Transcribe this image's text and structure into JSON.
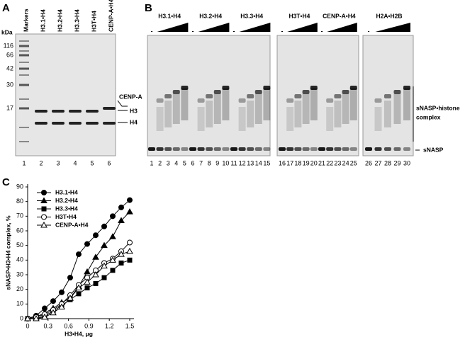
{
  "panel_a": {
    "letter": "A",
    "unit": "kDa",
    "lane_headers": [
      "Markers",
      "H3.1•H4",
      "H3.2•H4",
      "H3.3•H4",
      "H3T•H4",
      "CENP-A•H4"
    ],
    "marker_sizes": [
      116,
      66,
      42,
      30,
      17
    ],
    "lane_numbers": [
      1,
      2,
      3,
      4,
      5,
      6
    ],
    "band_labels": [
      "CENP-A",
      "H3",
      "H4"
    ]
  },
  "panel_b": {
    "letter": "B",
    "groups": [
      {
        "label": "H3.1•H4",
        "minus": "-"
      },
      {
        "label": "H3.2•H4",
        "minus": "-"
      },
      {
        "label": "H3.3•H4",
        "minus": "-"
      },
      {
        "label": "H3T•H4",
        "minus": "-"
      },
      {
        "label": "CENP-A•H4",
        "minus": "-"
      },
      {
        "label": "H2A•H2B",
        "minus": "-"
      }
    ],
    "lane_numbers": [
      1,
      2,
      3,
      4,
      5,
      6,
      7,
      8,
      9,
      10,
      11,
      12,
      13,
      14,
      15,
      16,
      17,
      18,
      19,
      20,
      21,
      22,
      23,
      24,
      25,
      26,
      27,
      28,
      29,
      30
    ],
    "complex_label": [
      "sNASP•histone",
      "complex"
    ],
    "free_label": "sNASP"
  },
  "chart_data": {
    "type": "line",
    "letter": "C",
    "x_label": "H3•H4, μg",
    "y_label": "sNASP•H3•H4 complex, %",
    "x": [
      0,
      0.125,
      0.25,
      0.375,
      0.5,
      0.625,
      0.75,
      0.875,
      1.0,
      1.125,
      1.25,
      1.375,
      1.5
    ],
    "xlim": [
      0,
      1.5
    ],
    "xticks": [
      0,
      0.3,
      0.6,
      0.9,
      1.2,
      1.5
    ],
    "ylim": [
      0,
      90
    ],
    "yticks": [
      0,
      10,
      20,
      30,
      40,
      50,
      60,
      70,
      80,
      90
    ],
    "legend": "upper left",
    "series": [
      {
        "name": "H3.1•H4",
        "color": "#000000",
        "marker": "circle",
        "filled": true,
        "values": [
          0,
          2,
          7,
          12,
          18,
          28,
          44,
          51,
          57,
          63,
          70,
          76,
          81
        ]
      },
      {
        "name": "H3.2•H4",
        "color": "#000000",
        "marker": "triangle",
        "filled": true,
        "values": [
          0,
          1,
          4,
          7,
          11,
          14,
          22,
          32,
          42,
          50,
          56,
          67,
          73
        ]
      },
      {
        "name": "H3.3•H4",
        "color": "#000000",
        "marker": "square",
        "filled": true,
        "values": [
          0,
          0,
          2,
          5,
          9,
          13,
          17,
          21,
          24,
          28,
          33,
          38,
          40
        ]
      },
      {
        "name": "H3T•H4",
        "color": "#000000",
        "marker": "circle",
        "filled": false,
        "values": [
          0,
          1,
          3,
          6,
          10,
          16,
          23,
          28,
          33,
          38,
          41,
          46,
          52
        ]
      },
      {
        "name": "CENP-A•H4",
        "color": "#000000",
        "marker": "triangle",
        "filled": false,
        "values": [
          0,
          0,
          1,
          4,
          8,
          14,
          21,
          25,
          30,
          36,
          40,
          44,
          46
        ]
      }
    ]
  }
}
